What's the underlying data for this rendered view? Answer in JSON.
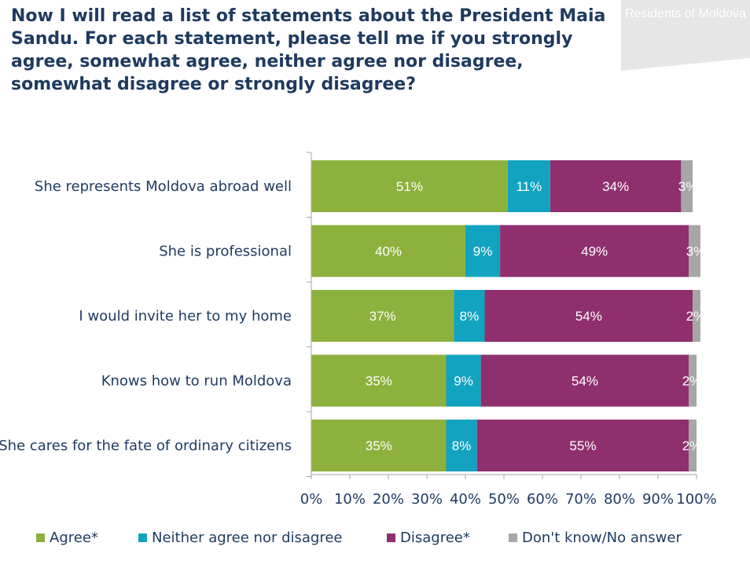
{
  "header": {
    "title": "Now I will read a list of statements about the President Maia Sandu. For each statement, please tell me if you strongly agree, somewhat agree, neither agree nor disagree, somewhat disagree or strongly disagree?",
    "badge": "Residents of Moldova"
  },
  "chart_data": {
    "type": "bar",
    "orientation": "horizontal",
    "stacked": true,
    "categories": [
      "She represents Moldova abroad well",
      "She is professional",
      "I would invite her to my home",
      "Knows how to run Moldova",
      "She cares for the fate of ordinary citizens"
    ],
    "series": [
      {
        "name": "Agree*",
        "color": "#8db13d",
        "values": [
          51,
          40,
          37,
          35,
          35
        ],
        "labels": [
          "51%",
          "40%",
          "37%",
          "35%",
          "35%"
        ]
      },
      {
        "name": "Neither agree nor disagree",
        "color": "#12a3c0",
        "values": [
          11,
          9,
          8,
          9,
          8
        ],
        "labels": [
          "11%",
          "9%",
          "8%",
          "9%",
          "8%"
        ]
      },
      {
        "name": "Disagree*",
        "color": "#8f2f6e",
        "values": [
          34,
          49,
          54,
          54,
          55
        ],
        "labels": [
          "34%",
          "49%",
          "54%",
          "54%",
          "55%"
        ]
      },
      {
        "name": "Don't know/No answer",
        "color": "#a6a6a6",
        "values": [
          3,
          3,
          2,
          2,
          2
        ],
        "labels": [
          "3%",
          "3%",
          "2%",
          "2%",
          "2%"
        ]
      }
    ],
    "xlim": [
      0,
      100
    ],
    "xticks": [
      "0%",
      "10%",
      "20%",
      "30%",
      "40%",
      "50%",
      "60%",
      "70%",
      "80%",
      "90%",
      "100%"
    ],
    "grid": false,
    "legend_position": "bottom"
  }
}
